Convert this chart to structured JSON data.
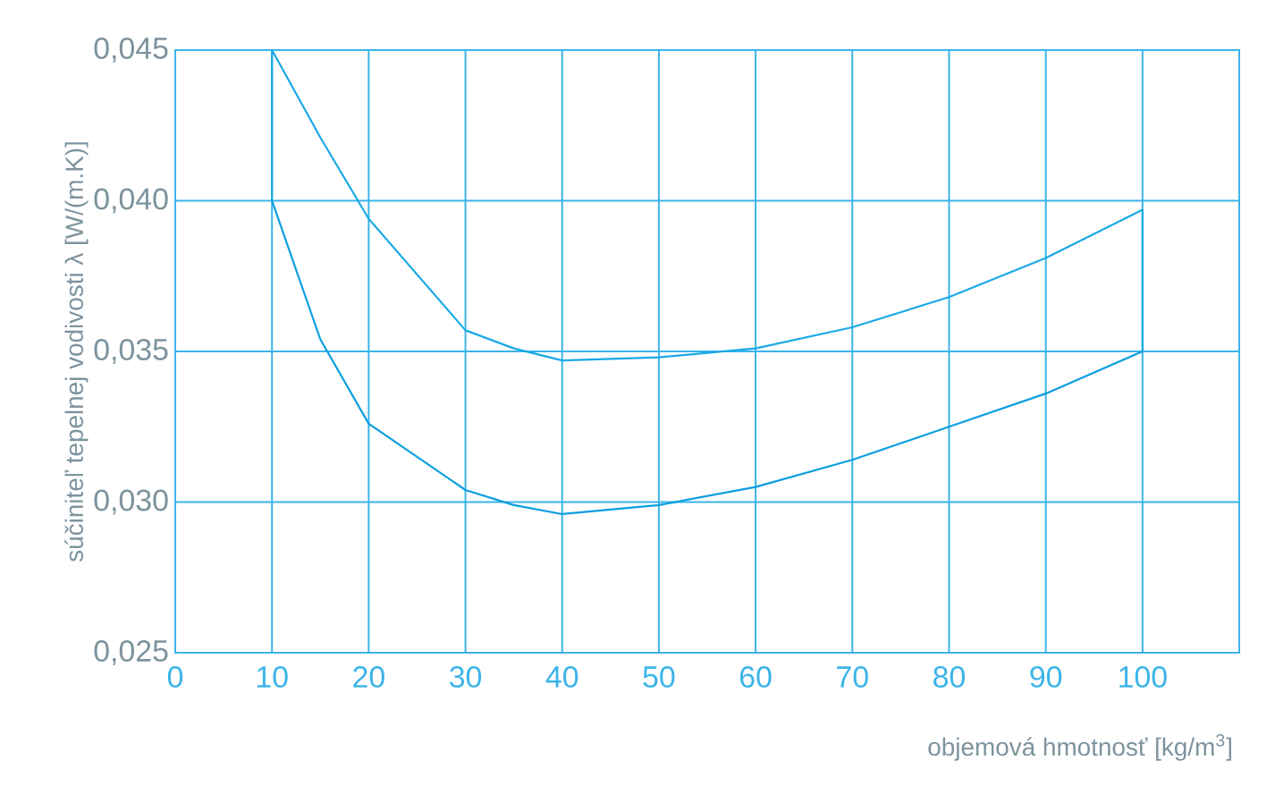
{
  "chart_data": {
    "type": "line",
    "xlabel": "objemová hmotnosť [kg/m$^{3}$]",
    "ylabel": "súčiniteľ tepelnej vodivosti λ [W/(m.K)]",
    "series": [
      {
        "color": "#1aa9e6",
        "x": [
          10,
          10,
          15,
          20,
          30,
          35,
          40,
          50,
          60,
          70,
          80,
          90,
          100,
          100
        ],
        "values": [
          0.04,
          0.045,
          0.0421,
          0.0394,
          0.0357,
          0.0351,
          0.0347,
          0.0348,
          0.0351,
          0.0358,
          0.0368,
          0.0381,
          0.0397,
          0.035
        ]
      },
      {
        "color": "#0b9fdf",
        "x": [
          10,
          15,
          20,
          30,
          35,
          40,
          50,
          60,
          70,
          80,
          90,
          100
        ],
        "values": [
          0.04,
          0.0354,
          0.0326,
          0.0304,
          0.0299,
          0.0296,
          0.0299,
          0.0305,
          0.0314,
          0.0325,
          0.0336,
          0.035
        ]
      }
    ],
    "xlim": [
      0,
      110
    ],
    "xticks": [
      0,
      10,
      20,
      30,
      40,
      50,
      60,
      70,
      80,
      90,
      100
    ],
    "ylim": [
      0.025,
      0.045
    ],
    "yticks": [
      {
        "value": 0.025,
        "label": "0,025"
      },
      {
        "value": 0.03,
        "label": "0,030"
      },
      {
        "value": 0.035,
        "label": "0,035"
      },
      {
        "value": 0.04,
        "label": "0,040"
      },
      {
        "value": 0.045,
        "label": "0,045"
      }
    ],
    "grid": true,
    "marker": "none",
    "line_style": "solid"
  }
}
